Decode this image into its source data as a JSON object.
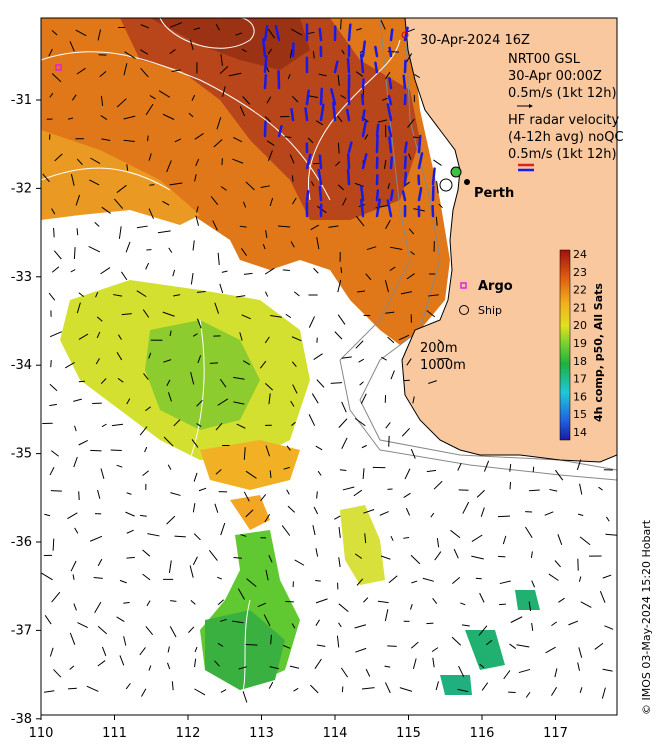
{
  "map": {
    "lon_ticks": [
      "110",
      "111",
      "112",
      "113",
      "114",
      "115",
      "116",
      "117"
    ],
    "lat_ticks": [
      "-31",
      "-32",
      "-33",
      "-34",
      "-35",
      "-36",
      "-37",
      "-38"
    ],
    "timestamp": "30-Apr-2024 16Z",
    "gsl_title": "NRT00 GSL",
    "gsl_time": "30-Apr 00:00Z",
    "gsl_scale": "0.5m/s (1kt 12h)",
    "hf_title_1": "HF radar velocity",
    "hf_title_2": "(4-12h avg) noQC",
    "hf_scale": "0.5m/s (1kt 12h)",
    "city": "Perth",
    "argo_label": "Argo",
    "ship_label": "Ship",
    "isobath_1": "200m",
    "isobath_2": "1000m",
    "colorbar_title": "4h comp, p50, All Sats",
    "colorbar_ticks": [
      "24",
      "23",
      "22",
      "21",
      "20",
      "19",
      "18",
      "17",
      "16",
      "15",
      "14"
    ],
    "credit": "© IMOS 03-May-2024 15:20 Hobart",
    "colors": {
      "land": "#f9c89f",
      "warm": "#c04a14",
      "mid": "#ea8a1a",
      "cool": "#d8e22e",
      "green": "#2fb43c",
      "hf_arrow": "#1a1ae6"
    }
  }
}
